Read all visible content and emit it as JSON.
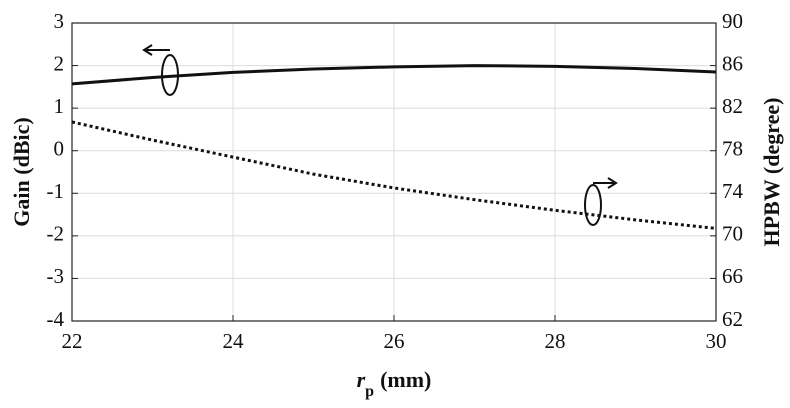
{
  "chart_data": {
    "type": "line",
    "xlabel": {
      "var": "r",
      "sub": "p",
      "unit": "(mm)"
    },
    "ylabel": "Gain (dBic)",
    "y2label": "HPBW (degree)",
    "x": [
      22,
      23,
      24,
      25,
      26,
      27,
      28,
      29,
      30
    ],
    "series": [
      {
        "name": "Gain",
        "color": "#111111",
        "style": "solid",
        "values": [
          1.57,
          1.72,
          1.84,
          1.92,
          1.97,
          2.0,
          1.98,
          1.93,
          1.85
        ]
      },
      {
        "name": "HPBW",
        "color": "#111111",
        "style": "dotted",
        "axis": "y2",
        "values": [
          80.7,
          79.0,
          77.4,
          75.8,
          74.5,
          73.4,
          72.4,
          71.5,
          70.7
        ]
      }
    ],
    "xlim": [
      22,
      30
    ],
    "xticks": [
      22,
      24,
      26,
      28,
      30
    ],
    "ylim": [
      -4,
      3
    ],
    "yticks": [
      -4,
      -3,
      -2,
      -1,
      0,
      1,
      2,
      3
    ],
    "y2lim": [
      62,
      90
    ],
    "y2ticks": [
      62,
      66,
      70,
      74,
      78,
      82,
      86,
      90
    ],
    "grid": true
  }
}
